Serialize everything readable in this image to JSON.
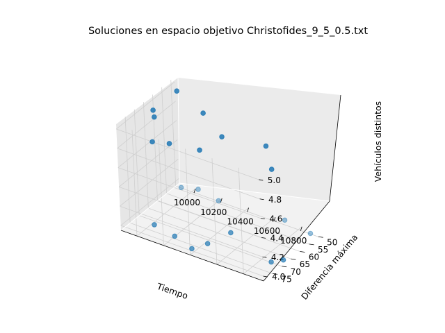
{
  "chart_data": {
    "type": "scatter",
    "title": "Soluciones en espacio objetivo Christofides_9_5_0.5.txt",
    "xlabel": "Tiempo",
    "ylabel": "Diferencia máxima",
    "zlabel": "Vehículos distintos",
    "x_ticks": [
      "10000",
      "10200",
      "10400",
      "10600",
      "10800"
    ],
    "y_ticks": [
      "50",
      "55",
      "60",
      "65",
      "70",
      "75"
    ],
    "z_ticks": [
      "4.0",
      "4.2",
      "4.4",
      "4.6",
      "4.8",
      "5.0"
    ],
    "point_color": "#1f77b4",
    "points": [
      {
        "x": 9950,
        "y": 52,
        "z": 4
      },
      {
        "x": 10050,
        "y": 50,
        "z": 4
      },
      {
        "x": 10230,
        "y": 52,
        "z": 4
      },
      {
        "x": 10700,
        "y": 50,
        "z": 4
      },
      {
        "x": 10920,
        "y": 52,
        "z": 4
      },
      {
        "x": 10500,
        "y": 65,
        "z": 4
      },
      {
        "x": 10050,
        "y": 74,
        "z": 4
      },
      {
        "x": 10230,
        "y": 76,
        "z": 4
      },
      {
        "x": 10400,
        "y": 79,
        "z": 4
      },
      {
        "x": 10450,
        "y": 74,
        "z": 4
      },
      {
        "x": 10900,
        "y": 72,
        "z": 4
      },
      {
        "x": 10950,
        "y": 69,
        "z": 4
      },
      {
        "x": 9950,
        "y": 52,
        "z": 5
      },
      {
        "x": 9950,
        "y": 65,
        "z": 5
      },
      {
        "x": 10230,
        "y": 58,
        "z": 5
      },
      {
        "x": 10000,
        "y": 68,
        "z": 5
      },
      {
        "x": 10150,
        "y": 80,
        "z": 5
      },
      {
        "x": 10250,
        "y": 78,
        "z": 5
      },
      {
        "x": 10450,
        "y": 76,
        "z": 5
      },
      {
        "x": 10480,
        "y": 66,
        "z": 5
      },
      {
        "x": 10770,
        "y": 63,
        "z": 5
      },
      {
        "x": 10950,
        "y": 73,
        "z": 5
      }
    ]
  }
}
